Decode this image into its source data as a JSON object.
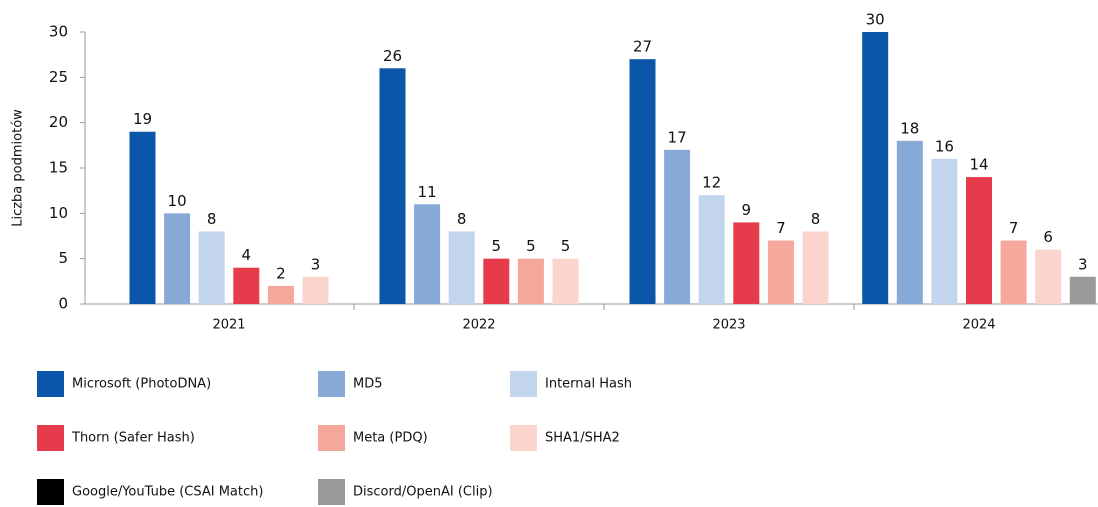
{
  "chart_data": {
    "type": "bar",
    "y_label": "Liczba podmiotów",
    "categories": [
      "2021",
      "2022",
      "2023",
      "2024"
    ],
    "series": [
      {
        "name": "Microsoft (PhotoDNA)",
        "color": "#0b56a8",
        "values": [
          19,
          26,
          27,
          30
        ]
      },
      {
        "name": "MD5",
        "color": "#87a9d6",
        "values": [
          10,
          11,
          17,
          18
        ]
      },
      {
        "name": "Internal Hash",
        "color": "#c3d5ec",
        "values": [
          8,
          8,
          12,
          16
        ]
      },
      {
        "name": "Thorn (Safer Hash)",
        "color": "#e63b4a",
        "values": [
          4,
          5,
          9,
          14
        ]
      },
      {
        "name": "Meta (PDQ)",
        "color": "#f4a89b",
        "values": [
          2,
          5,
          7,
          7
        ]
      },
      {
        "name": "SHA1/SHA2",
        "color": "#fbd5cd",
        "values": [
          3,
          5,
          8,
          6
        ]
      },
      {
        "name": "Google/YouTube (CSAI Match)",
        "color": "#000000",
        "values": [
          null,
          null,
          null,
          null
        ]
      },
      {
        "name": "Discord/OpenAI (Clip)",
        "color": "#999999",
        "values": [
          null,
          null,
          null,
          3
        ]
      }
    ],
    "ylim": [
      0,
      30
    ],
    "yticks": [
      0,
      5,
      10,
      15,
      20,
      25,
      30
    ]
  }
}
